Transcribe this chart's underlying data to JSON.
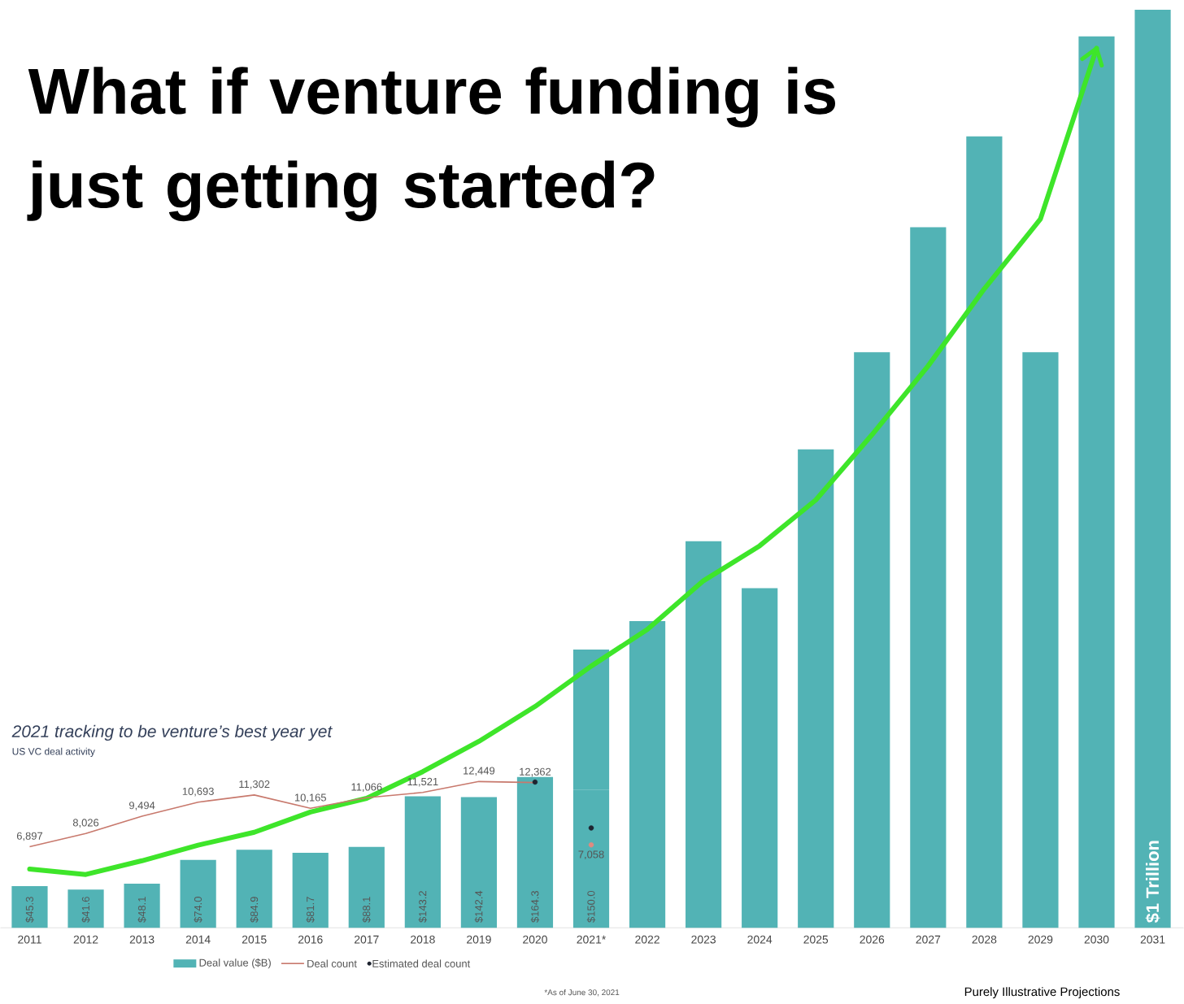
{
  "chart_data": {
    "type": "bar",
    "title": "What if venture funding is just getting started?",
    "categories": [
      "2011",
      "2012",
      "2013",
      "2014",
      "2015",
      "2016",
      "2017",
      "2018",
      "2019",
      "2020",
      "2021*",
      "2022",
      "2023",
      "2024",
      "2025",
      "2026",
      "2027",
      "2028",
      "2029",
      "2030",
      "2031"
    ],
    "stacked": true,
    "tick_labels": "x",
    "legend": "bottom",
    "series": [
      {
        "name": "Deal value ($B)",
        "color": "#52b3b5",
        "values": [
          45.3,
          41.6,
          48.1,
          74.0,
          84.9,
          81.7,
          88.1,
          143.2,
          142.4,
          164.3,
          150.0,
          null,
          null,
          null,
          null,
          null,
          null,
          null,
          null,
          null,
          null
        ],
        "value_labels": [
          "$45.3",
          "$41.6",
          "$48.1",
          "$74.0",
          "$84.9",
          "$81.7",
          "$88.1",
          "$143.2",
          "$142.4",
          "$164.3",
          "$150.0",
          null,
          null,
          null,
          null,
          null,
          null,
          null,
          null,
          null,
          null
        ]
      },
      {
        "color": "#52b3b5",
        "values": [
          null,
          null,
          null,
          null,
          null,
          null,
          null,
          null,
          null,
          null,
          153,
          334,
          421,
          370,
          521,
          627,
          763,
          862,
          627,
          971,
          1000
        ]
      },
      {
        "name": "Deal count",
        "type": "line",
        "axis": "y2",
        "color": "#c8796d",
        "values": [
          6897,
          8026,
          9494,
          10693,
          11302,
          10165,
          11066,
          11521,
          12449,
          12362,
          null,
          null,
          null,
          null,
          null,
          null,
          null,
          null,
          null,
          null,
          null
        ],
        "value_labels": [
          "6,897",
          "8,026",
          "9,494",
          "10,693",
          "11,302",
          "10,165",
          "11,066",
          "11,521",
          "12,449",
          "12,362",
          null,
          null,
          null,
          null,
          null,
          null,
          null,
          null,
          null,
          null,
          null
        ]
      },
      {
        "type": "scatter",
        "axis": "y2",
        "color": "#e08a80",
        "values": [
          null,
          null,
          null,
          null,
          null,
          null,
          null,
          null,
          null,
          null,
          7058,
          null,
          null,
          null,
          null,
          null,
          null,
          null,
          null,
          null,
          null
        ],
        "value_labels": [
          null,
          null,
          null,
          null,
          null,
          null,
          null,
          null,
          null,
          null,
          "7,058",
          null,
          null,
          null,
          null,
          null,
          null,
          null,
          null,
          null,
          null
        ]
      },
      {
        "type": "line",
        "color": "#3ee52a",
        "values": [
          64,
          58,
          73,
          90,
          104,
          126,
          141,
          170,
          203,
          241,
          285,
          325,
          378,
          416,
          466,
          537,
          612,
          696,
          772,
          958,
          null
        ]
      },
      {
        "name": "Estimated deal count",
        "type": "scatter",
        "axis": "y2",
        "color": "#1e2430",
        "values": [
          null,
          null,
          null,
          null,
          null,
          null,
          null,
          null,
          null,
          12400,
          8500,
          null,
          null,
          null,
          null,
          null,
          null,
          null,
          null,
          null,
          null
        ]
      }
    ],
    "annotations": [
      "2021 tracking to be venture’s best year yet",
      "US VC deal activity",
      "*As of June 30, 2021",
      "Purely Illustrative Projections",
      "$1 Trillion"
    ]
  }
}
